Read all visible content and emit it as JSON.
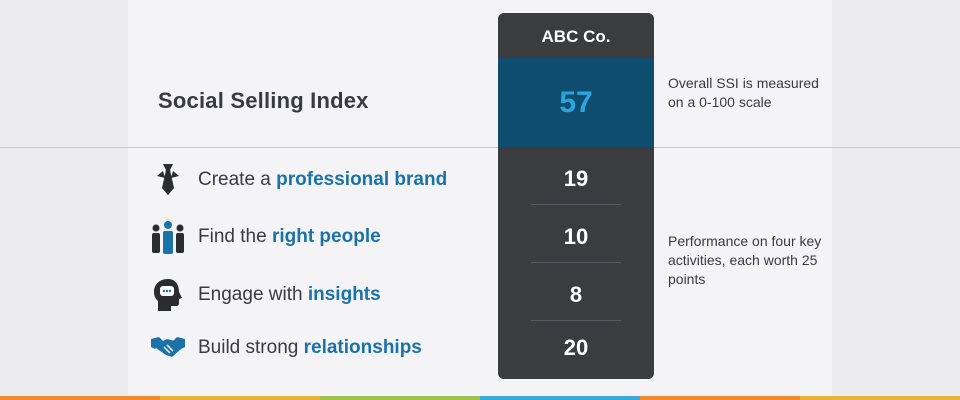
{
  "header": {
    "title": "Social Selling Index"
  },
  "company": {
    "name": "ABC Co.",
    "total_score": "57"
  },
  "activities": [
    {
      "prefix": "Create a ",
      "highlight": "professional brand",
      "score": "19",
      "icon": "necktie-icon"
    },
    {
      "prefix": "Find the ",
      "highlight": "right people",
      "score": "10",
      "icon": "people-group-icon"
    },
    {
      "prefix": "Engage with ",
      "highlight": "insights",
      "score": "8",
      "icon": "head-speech-icon"
    },
    {
      "prefix": "Build strong ",
      "highlight": "relationships",
      "score": "20",
      "icon": "handshake-icon"
    }
  ],
  "notes": {
    "overall": "Overall SSI is measured on a 0-100 scale",
    "performance": "Performance on four key activities, each worth 25 points"
  },
  "colors": {
    "highlight_text": "#1a72a8",
    "panel_bg": "#3b3c3e",
    "total_bg": "#0e4d6e",
    "total_text": "#2aa5e0"
  }
}
